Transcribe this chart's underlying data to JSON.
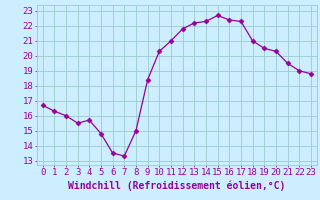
{
  "x": [
    0,
    1,
    2,
    3,
    4,
    5,
    6,
    7,
    8,
    9,
    10,
    11,
    12,
    13,
    14,
    15,
    16,
    17,
    18,
    19,
    20,
    21,
    22,
    23
  ],
  "y": [
    16.7,
    16.3,
    16.0,
    15.5,
    15.7,
    14.8,
    13.5,
    13.3,
    15.0,
    18.4,
    20.3,
    21.0,
    21.8,
    22.2,
    22.3,
    22.7,
    22.4,
    22.3,
    21.0,
    20.5,
    20.3,
    19.5,
    19.0,
    18.8
  ],
  "line_color": "#990099",
  "marker": "D",
  "marker_size": 2.5,
  "bg_color": "#cceeff",
  "grid_color": "#99cccc",
  "xlabel": "Windchill (Refroidissement éolien,°C)",
  "xlabel_color": "#990099",
  "xlabel_fontsize": 7,
  "ylabel_ticks": [
    13,
    14,
    15,
    16,
    17,
    18,
    19,
    20,
    21,
    22,
    23
  ],
  "xlim": [
    -0.5,
    23.5
  ],
  "ylim": [
    12.7,
    23.4
  ],
  "xtick_labels": [
    "0",
    "1",
    "2",
    "3",
    "4",
    "5",
    "6",
    "7",
    "8",
    "9",
    "10",
    "11",
    "12",
    "13",
    "14",
    "15",
    "16",
    "17",
    "18",
    "19",
    "20",
    "21",
    "22",
    "23"
  ],
  "tick_fontsize": 6.5,
  "tick_color": "#990099"
}
